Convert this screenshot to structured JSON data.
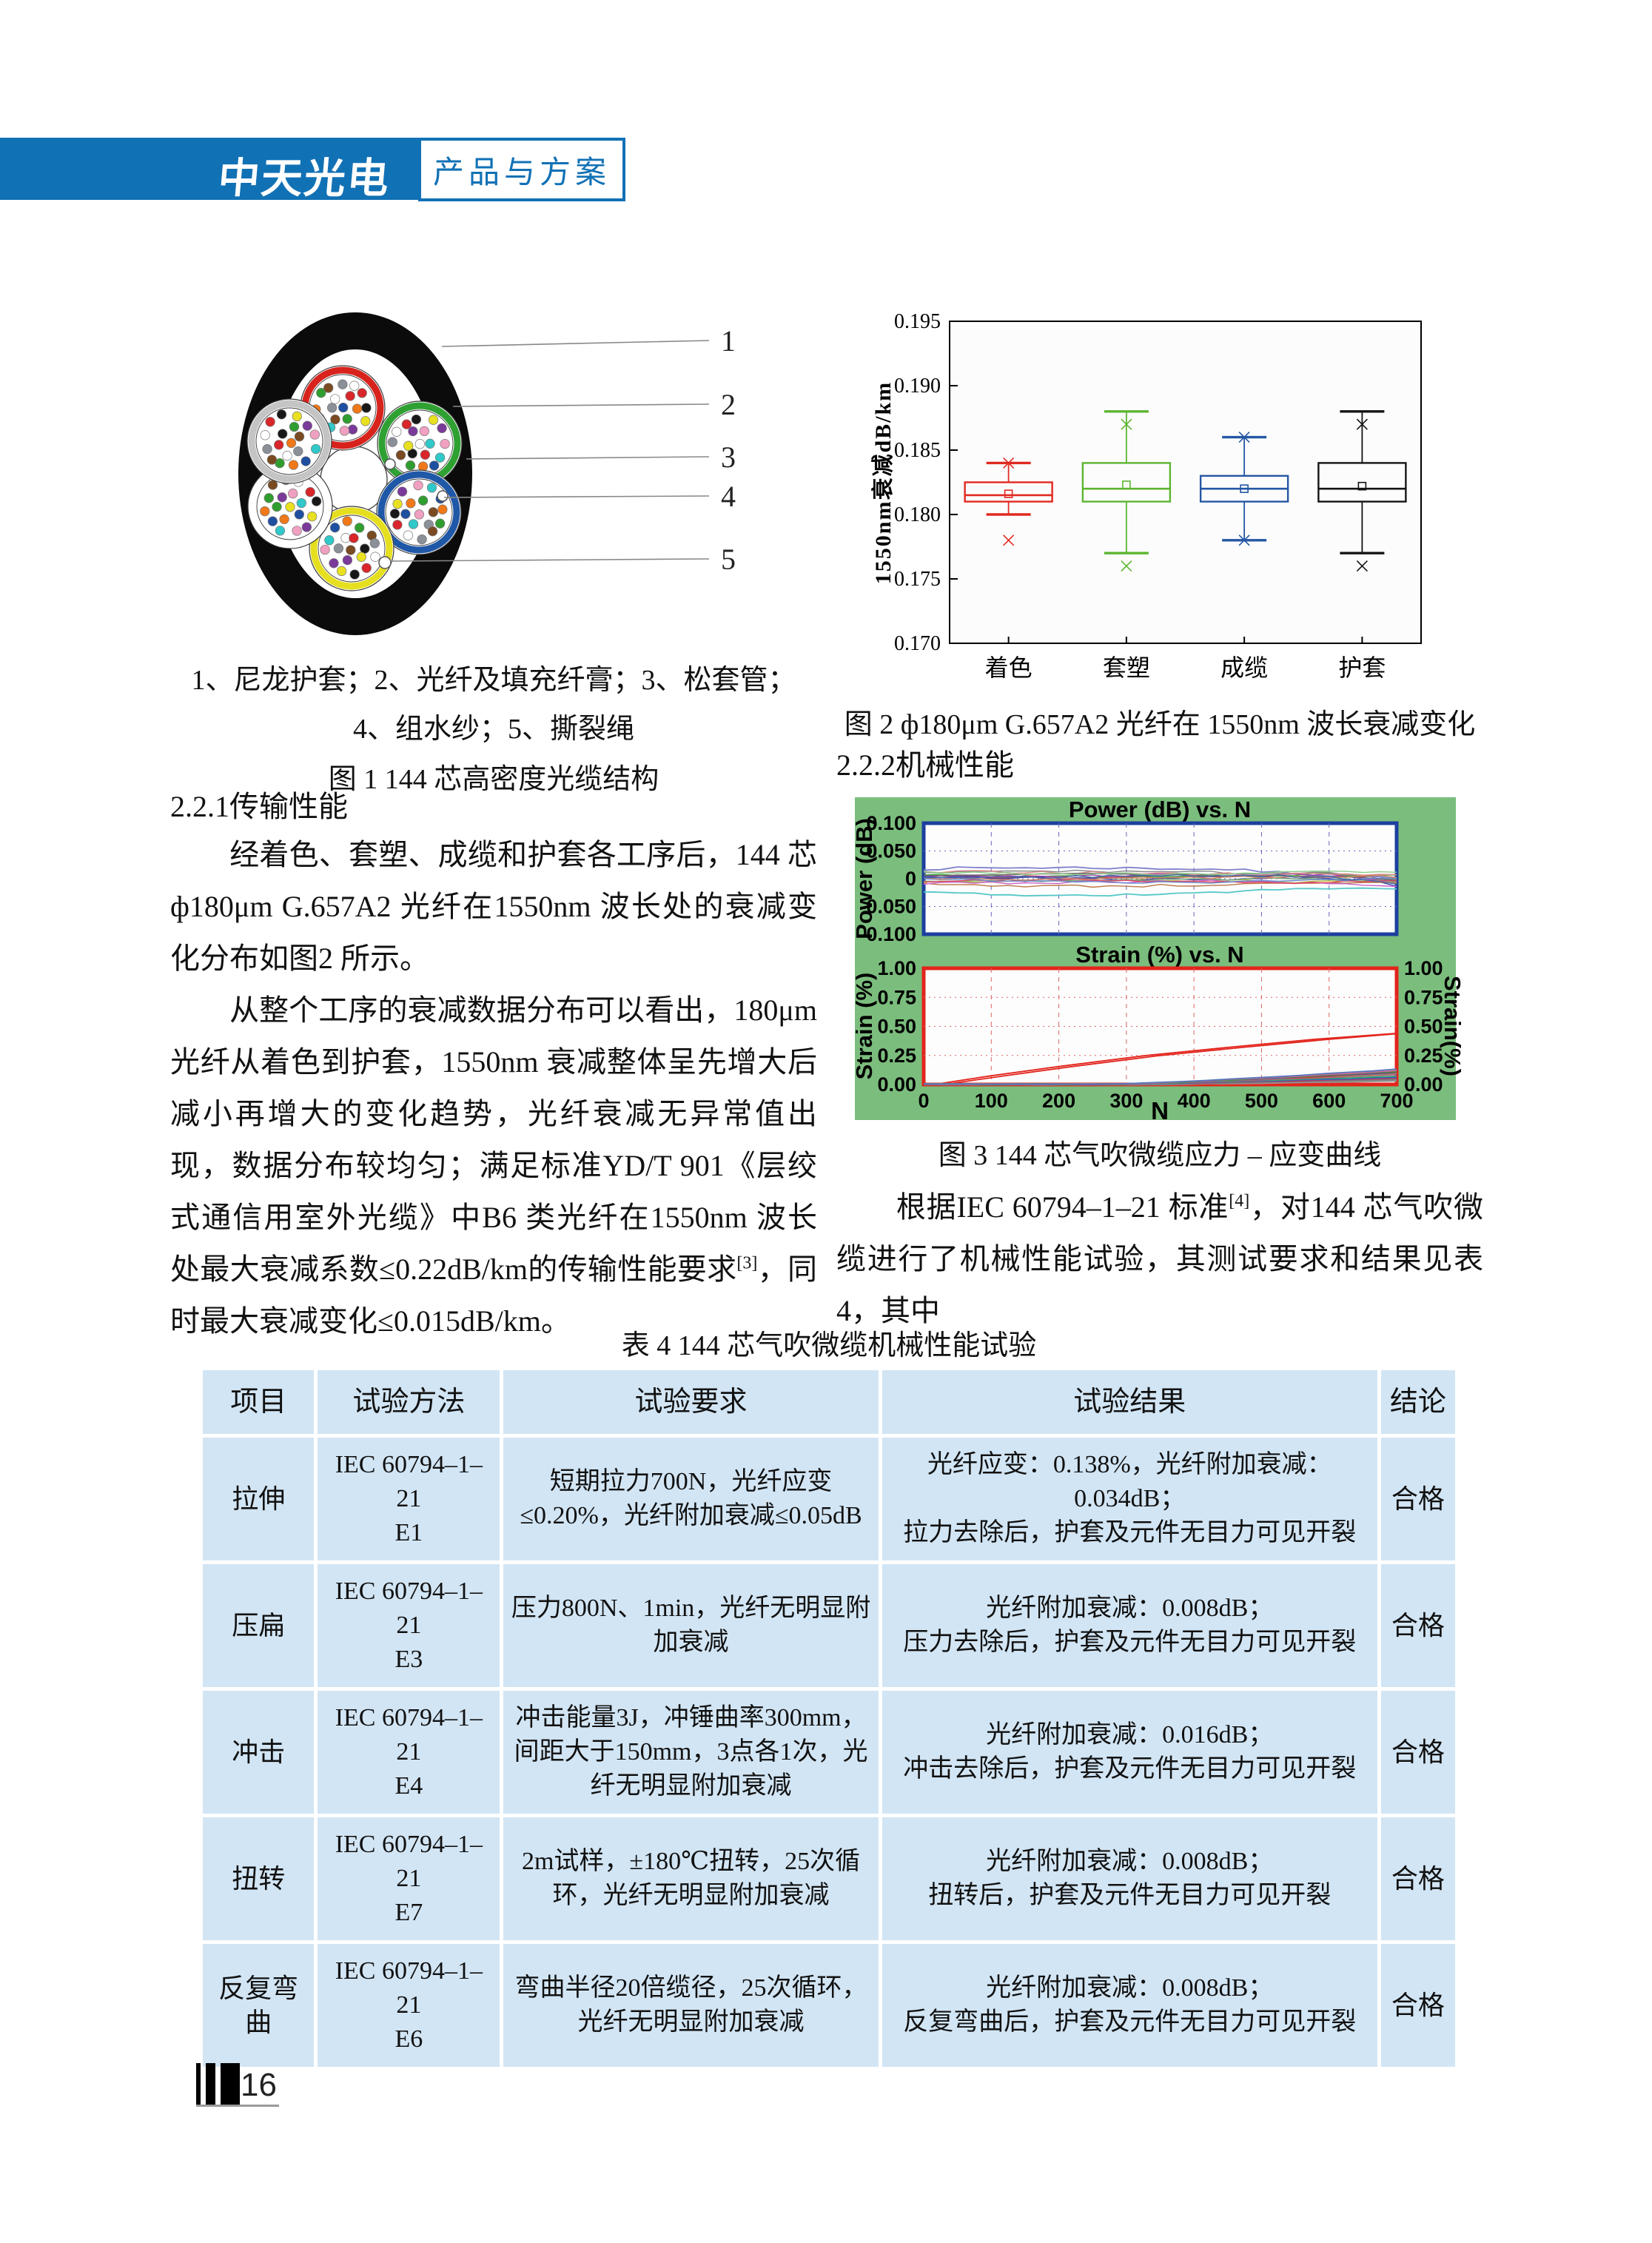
{
  "page": {
    "page_number": "16"
  },
  "header": {
    "logo": "中天光电",
    "badge": "产品与方案",
    "bar_color": "#1171b5"
  },
  "left_column": {
    "figure1": {
      "caption_line1": "1、尼龙护套；2、光纤及填充纤膏；3、松套管；",
      "caption_line2": "4、组水纱；5、撕裂绳",
      "figure_label": "图 1 144 芯高密度光缆结构",
      "callouts": [
        "1",
        "2",
        "3",
        "4",
        "5"
      ],
      "tube_colors": [
        "#d8231d",
        "#2fa133",
        "#2058a8",
        "#e6df1f",
        "#ffffff",
        "#c4c4c4"
      ],
      "fiber_colors": [
        "#1f4fa0",
        "#f07818",
        "#2f9e2f",
        "#7a4a22",
        "#8a8f98",
        "#ffffff",
        "#d8262a",
        "#181818",
        "#e8e020",
        "#7a3a9a",
        "#f0a0c0",
        "#30c8c8"
      ]
    },
    "section_heading": "2.2.1传输性能",
    "para1": "经着色、套塑、成缆和护套各工序后，144 芯ф180μm G.657A2 光纤在1550nm 波长处的衰减变化分布如图2 所示。",
    "para2a": "从整个工序的衰减数据分布可以看出，180μm 光纤从着色到护套，1550nm 衰减整体呈先增大后减小再增大的变化趋势，光纤衰减无异常值出现，数据分布较均匀；满足标准YD/T 901《层绞式通信用室外光缆》中B6 类光纤在1550nm 波长处最大衰减系数≤0.22dB/km的传输性能要求",
    "ref3": "[3]",
    "para2b": "，同时最大衰减变化≤0.015dB/km。"
  },
  "right_column": {
    "fig2_caption": "图 2 ф180μm G.657A2 光纤在 1550nm 波长衰减变化",
    "section_heading": "2.2.2机械性能",
    "fig3_caption": "图 3 144 芯气吹微缆应力 – 应变曲线",
    "para1a": "根据IEC 60794–1–21 标准",
    "ref4": "[4]",
    "para1b": "，对144 芯气吹微缆进行了机械性能试验，其测试要求和结果见表4，其中"
  },
  "table": {
    "title": "表 4 144 芯气吹微缆机械性能试验",
    "headers": [
      "项目",
      "试验方法",
      "试验要求",
      "试验结果",
      "结论"
    ],
    "rows": [
      {
        "item": "拉伸",
        "method": "IEC 60794–1–21",
        "code": "E1",
        "requirement": "短期拉力700N，光纤应变≤0.20%，光纤附加衰减≤0.05dB",
        "result_line1": "光纤应变：0.138%，光纤附加衰减：0.034dB；",
        "result_line2": "拉力去除后，护套及元件无目力可见开裂",
        "verdict": "合格"
      },
      {
        "item": "压扁",
        "method": "IEC 60794–1–21",
        "code": "E3",
        "requirement": "压力800N、1min，光纤无明显附加衰减",
        "result_line1": "光纤附加衰减：0.008dB；",
        "result_line2": "压力去除后，护套及元件无目力可见开裂",
        "verdict": "合格"
      },
      {
        "item": "冲击",
        "method": "IEC 60794–1–21",
        "code": "E4",
        "requirement": "冲击能量3J，冲锤曲率300mm，间距大于150mm，3点各1次，光纤无明显附加衰减",
        "result_line1": "光纤附加衰减：0.016dB；",
        "result_line2": "冲击去除后，护套及元件无目力可见开裂",
        "verdict": "合格"
      },
      {
        "item": "扭转",
        "method": "IEC 60794–1–21",
        "code": "E7",
        "requirement": "2m试样，±180℃扭转，25次循环，光纤无明显附加衰减",
        "result_line1": "光纤附加衰减：0.008dB；",
        "result_line2": "扭转后，护套及元件无目力可见开裂",
        "verdict": "合格"
      },
      {
        "item": "反复弯曲",
        "method": "IEC 60794–1–21",
        "code": "E6",
        "requirement": "弯曲半径20倍缆径，25次循环，光纤无明显附加衰减",
        "result_line1": "光纤附加衰减：0.008dB；",
        "result_line2": "反复弯曲后，护套及元件无目力可见开裂",
        "verdict": "合格"
      }
    ]
  },
  "chart_data": [
    {
      "id": "fig2",
      "type": "boxplot",
      "title": "图 2 ф180μm G.657A2 光纤在 1550nm 波长衰减变化",
      "ylabel": "1550nm衰减dB/km",
      "ylim": [
        0.17,
        0.195
      ],
      "yticks": [
        "0.195",
        "0.190",
        "0.185",
        "0.180",
        "0.175",
        "0.170"
      ],
      "ytick_values": [
        0.195,
        0.19,
        0.185,
        0.18,
        0.175,
        0.17
      ],
      "grid": false,
      "categories": [
        "着色",
        "套塑",
        "成缆",
        "护套"
      ],
      "colors": [
        "#e02a21",
        "#5cb531",
        "#2456a4",
        "#141414"
      ],
      "boxes": [
        {
          "low": 0.18,
          "q1": 0.181,
          "median": 0.1815,
          "q3": 0.1825,
          "high": 0.184,
          "mean": 0.1816,
          "outliers": [
            0.184,
            0.178
          ]
        },
        {
          "low": 0.177,
          "q1": 0.181,
          "median": 0.182,
          "q3": 0.184,
          "high": 0.188,
          "mean": 0.1823,
          "outliers": [
            0.187,
            0.176
          ]
        },
        {
          "low": 0.178,
          "q1": 0.181,
          "median": 0.182,
          "q3": 0.183,
          "high": 0.186,
          "mean": 0.182,
          "outliers": [
            0.186,
            0.178
          ]
        },
        {
          "low": 0.177,
          "q1": 0.181,
          "median": 0.182,
          "q3": 0.184,
          "high": 0.188,
          "mean": 0.1822,
          "outliers": [
            0.187,
            0.176
          ]
        }
      ]
    },
    {
      "id": "fig3",
      "type": "line-panels",
      "background": "#7bbd7d",
      "caption": "图 3 144 芯气吹微缆应力 – 应变曲线",
      "panels": [
        {
          "title": "Power (dB) vs. N",
          "ylabel": "Power (dB)",
          "border": "#1c3f9e",
          "ylim": [
            -0.1,
            0.1
          ],
          "yticks": [
            "0.100",
            "0.050",
            "0",
            "-0.050",
            "-0.100"
          ],
          "ytick_values": [
            0.1,
            0.05,
            0,
            -0.05,
            -0.1
          ],
          "xlim": [
            0,
            700
          ],
          "n_lines": 18,
          "band": [
            -0.03,
            0.02
          ],
          "palette": [
            "#8080cc",
            "#55c8c8",
            "#cc4444",
            "#44aa44",
            "#aa44aa",
            "#bbbb33",
            "#888888",
            "#dd8888",
            "#4444aa",
            "#bb7744",
            "#77aa77",
            "#cc66cc",
            "#666666",
            "#dd4466",
            "#6688cc",
            "#88cc88",
            "#cc8866",
            "#4466aa"
          ]
        },
        {
          "title": "Strain (%) vs. N",
          "ylabel": "Strain (%)",
          "ylabel_right": "Strain(%)",
          "xlabel": "N",
          "border": "#e3241c",
          "ylim": [
            0.0,
            1.0
          ],
          "yticks": [
            "1.00",
            "0.75",
            "0.50",
            "0.25",
            "0.00"
          ],
          "ytick_values": [
            1.0,
            0.75,
            0.5,
            0.25,
            0.0
          ],
          "xticks": [
            "0",
            "100",
            "200",
            "300",
            "400",
            "500",
            "600",
            "700"
          ],
          "xtick_values": [
            0,
            100,
            200,
            300,
            400,
            500,
            600,
            700
          ],
          "main_line": {
            "color": "#e3241c",
            "points": [
              [
                15,
                0
              ],
              [
                100,
                0.075
              ],
              [
                200,
                0.155
              ],
              [
                330,
                0.25
              ],
              [
                460,
                0.325
              ],
              [
                580,
                0.39
              ],
              [
                700,
                0.44
              ]
            ]
          },
          "bundle": {
            "count": 14,
            "flat_until": 260,
            "end_range": [
              0.035,
              0.13
            ],
            "palette": [
              "#999999",
              "#8a8a8a",
              "#777777",
              "#cc3355",
              "#3355cc",
              "#33aa66",
              "#aa33aa",
              "#cc8833",
              "#3399cc",
              "#cc3333",
              "#6633cc",
              "#339933",
              "#cc6699",
              "#5577bb"
            ]
          }
        }
      ]
    }
  ]
}
